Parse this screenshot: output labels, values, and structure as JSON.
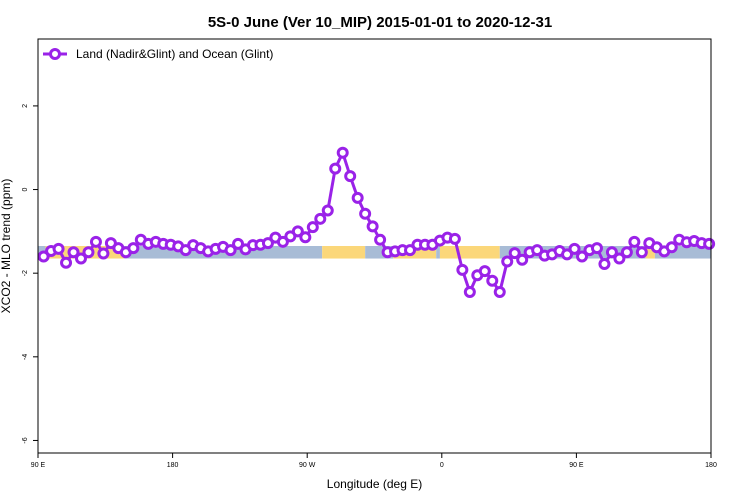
{
  "chart_data": {
    "type": "line",
    "title": "5S-0 June (Ver 10_MIP)   2015-01-01 to 2020-12-31",
    "xlabel": "Longitude (deg E)",
    "ylabel": "XCO2 - MLO trend (ppm)",
    "xlim": [
      -90,
      270
    ],
    "ylim": [
      -6.3,
      3.6
    ],
    "x_ticks": [
      {
        "value": -90,
        "label": "90 E"
      },
      {
        "value": -18,
        "label": "180"
      },
      {
        "value": 54,
        "label": "90 W"
      },
      {
        "value": 126,
        "label": "0"
      },
      {
        "value": 198,
        "label": "90 E"
      },
      {
        "value": 270,
        "label": "180"
      }
    ],
    "y_ticks": [
      {
        "value": 2,
        "label": "2"
      },
      {
        "value": 0,
        "label": "0"
      },
      {
        "value": -2,
        "label": "-2"
      },
      {
        "value": -4,
        "label": "-4"
      },
      {
        "value": -6,
        "label": "-6"
      }
    ],
    "legend": {
      "position": "top-left",
      "entries": [
        "Land (Nadir&Glint) and Ocean (Glint)"
      ]
    },
    "band": {
      "ymin": -1.65,
      "ymax": -1.35,
      "segments": [
        {
          "x0": -90,
          "x1": -86,
          "type": "ocean"
        },
        {
          "x0": -86,
          "x1": -44,
          "type": "land"
        },
        {
          "x0": -44,
          "x1": 62,
          "type": "ocean"
        },
        {
          "x0": 62,
          "x1": 85,
          "type": "land"
        },
        {
          "x0": 85,
          "x1": 100,
          "type": "ocean"
        },
        {
          "x0": 100,
          "x1": 123,
          "type": "land"
        },
        {
          "x0": 123,
          "x1": 125,
          "type": "ocean"
        },
        {
          "x0": 125,
          "x1": 157,
          "type": "land"
        },
        {
          "x0": 157,
          "x1": 235,
          "type": "ocean"
        },
        {
          "x0": 235,
          "x1": 240,
          "type": "land"
        },
        {
          "x0": 240,
          "x1": 270,
          "type": "ocean"
        }
      ]
    },
    "colors": {
      "line": "#9a22e8",
      "ocean": "#a8bcd6",
      "land": "#fbd77a",
      "frame": "#000000"
    },
    "series": [
      {
        "name": "Land (Nadir&Glint) and Ocean (Glint)",
        "x": [
          -87,
          -83,
          -79,
          -75,
          -71,
          -67,
          -63,
          -59,
          -55,
          -51,
          -47,
          -43,
          -39,
          -35,
          -31,
          -27,
          -23,
          -19,
          -15,
          -11,
          -7,
          -3,
          1,
          5,
          9,
          13,
          17,
          21,
          25,
          29,
          33,
          37,
          41,
          45,
          49,
          53,
          57,
          61,
          65,
          69,
          73,
          77,
          81,
          85,
          89,
          93,
          97,
          101,
          105,
          109,
          113,
          117,
          121,
          125,
          129,
          133,
          137,
          141,
          145,
          149,
          153,
          157,
          161,
          165,
          169,
          173,
          177,
          181,
          185,
          189,
          193,
          197,
          201,
          205,
          209,
          213,
          217,
          221,
          225,
          229,
          233,
          237,
          241,
          245,
          249,
          253,
          257,
          261,
          265,
          269
        ],
        "y": [
          -1.6,
          -1.47,
          -1.42,
          -1.75,
          -1.5,
          -1.65,
          -1.5,
          -1.25,
          -1.53,
          -1.28,
          -1.4,
          -1.5,
          -1.4,
          -1.2,
          -1.3,
          -1.25,
          -1.3,
          -1.32,
          -1.36,
          -1.45,
          -1.33,
          -1.4,
          -1.48,
          -1.42,
          -1.37,
          -1.45,
          -1.3,
          -1.43,
          -1.33,
          -1.32,
          -1.28,
          -1.15,
          -1.25,
          -1.12,
          -1.0,
          -1.14,
          -0.9,
          -0.7,
          -0.5,
          0.5,
          0.88,
          0.32,
          -0.2,
          -0.58,
          -0.88,
          -1.2,
          -1.5,
          -1.48,
          -1.45,
          -1.45,
          -1.32,
          -1.32,
          -1.32,
          -1.22,
          -1.15,
          -1.18,
          -1.92,
          -2.45,
          -2.05,
          -1.95,
          -2.18,
          -2.45,
          -1.72,
          -1.52,
          -1.68,
          -1.5,
          -1.45,
          -1.58,
          -1.55,
          -1.47,
          -1.55,
          -1.42,
          -1.6,
          -1.45,
          -1.4,
          -1.78,
          -1.5,
          -1.65,
          -1.5,
          -1.25,
          -1.5,
          -1.28,
          -1.38,
          -1.48,
          -1.38,
          -1.2,
          -1.26,
          -1.23,
          -1.28,
          -1.3
        ]
      }
    ]
  }
}
